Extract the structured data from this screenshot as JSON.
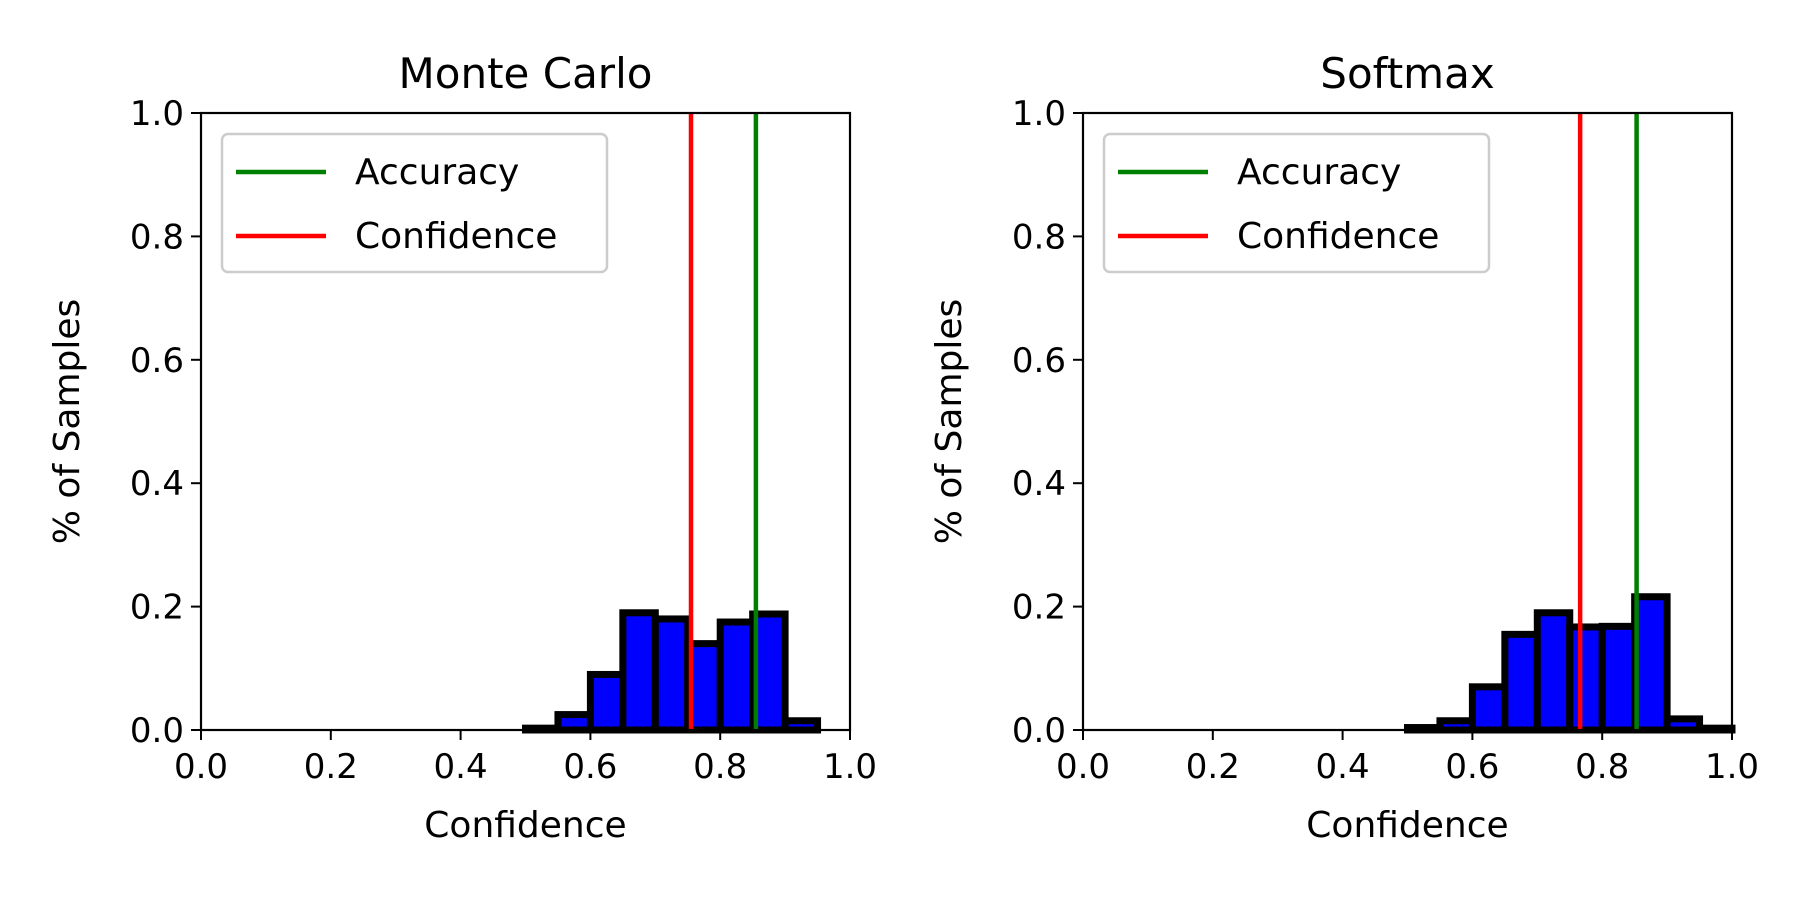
{
  "chart_data": [
    {
      "type": "bar",
      "title": "Monte Carlo",
      "xlabel": "Confidence",
      "ylabel": "% of Samples",
      "xlim": [
        0.0,
        1.0
      ],
      "ylim": [
        0.0,
        1.0
      ],
      "xticks": [
        "0.0",
        "0.2",
        "0.4",
        "0.6",
        "0.8",
        "1.0"
      ],
      "yticks": [
        "0.0",
        "0.2",
        "0.4",
        "0.6",
        "0.8",
        "1.0"
      ],
      "bin_width": 0.05,
      "bins": [
        0.0,
        0.05,
        0.1,
        0.15,
        0.2,
        0.25,
        0.3,
        0.35,
        0.4,
        0.45,
        0.5,
        0.55,
        0.6,
        0.65,
        0.7,
        0.75,
        0.8,
        0.85,
        0.9,
        0.95
      ],
      "values": [
        0,
        0,
        0,
        0,
        0,
        0,
        0,
        0,
        0,
        0,
        0.003,
        0.025,
        0.09,
        0.19,
        0.18,
        0.14,
        0.175,
        0.188,
        0.015,
        0
      ],
      "bar_color": "#0000ff",
      "edge_color": "#000000",
      "legend_position": "top-left",
      "grid": false,
      "lines": [
        {
          "name": "Accuracy",
          "x": 0.855,
          "color": "#008000"
        },
        {
          "name": "Confidence",
          "x": 0.755,
          "color": "#ff0000"
        }
      ]
    },
    {
      "type": "bar",
      "title": "Softmax",
      "xlabel": "Confidence",
      "ylabel": "% of Samples",
      "xlim": [
        0.0,
        1.0
      ],
      "ylim": [
        0.0,
        1.0
      ],
      "xticks": [
        "0.0",
        "0.2",
        "0.4",
        "0.6",
        "0.8",
        "1.0"
      ],
      "yticks": [
        "0.0",
        "0.2",
        "0.4",
        "0.6",
        "0.8",
        "1.0"
      ],
      "bin_width": 0.05,
      "bins": [
        0.0,
        0.05,
        0.1,
        0.15,
        0.2,
        0.25,
        0.3,
        0.35,
        0.4,
        0.45,
        0.5,
        0.55,
        0.6,
        0.65,
        0.7,
        0.75,
        0.8,
        0.85,
        0.9,
        0.95
      ],
      "values": [
        0,
        0,
        0,
        0,
        0,
        0,
        0,
        0,
        0,
        0,
        0.004,
        0.015,
        0.07,
        0.155,
        0.19,
        0.167,
        0.168,
        0.216,
        0.018,
        0.003
      ],
      "bar_color": "#0000ff",
      "edge_color": "#000000",
      "legend_position": "top-left",
      "grid": false,
      "lines": [
        {
          "name": "Accuracy",
          "x": 0.853,
          "color": "#008000"
        },
        {
          "name": "Confidence",
          "x": 0.766,
          "color": "#ff0000"
        }
      ]
    }
  ]
}
